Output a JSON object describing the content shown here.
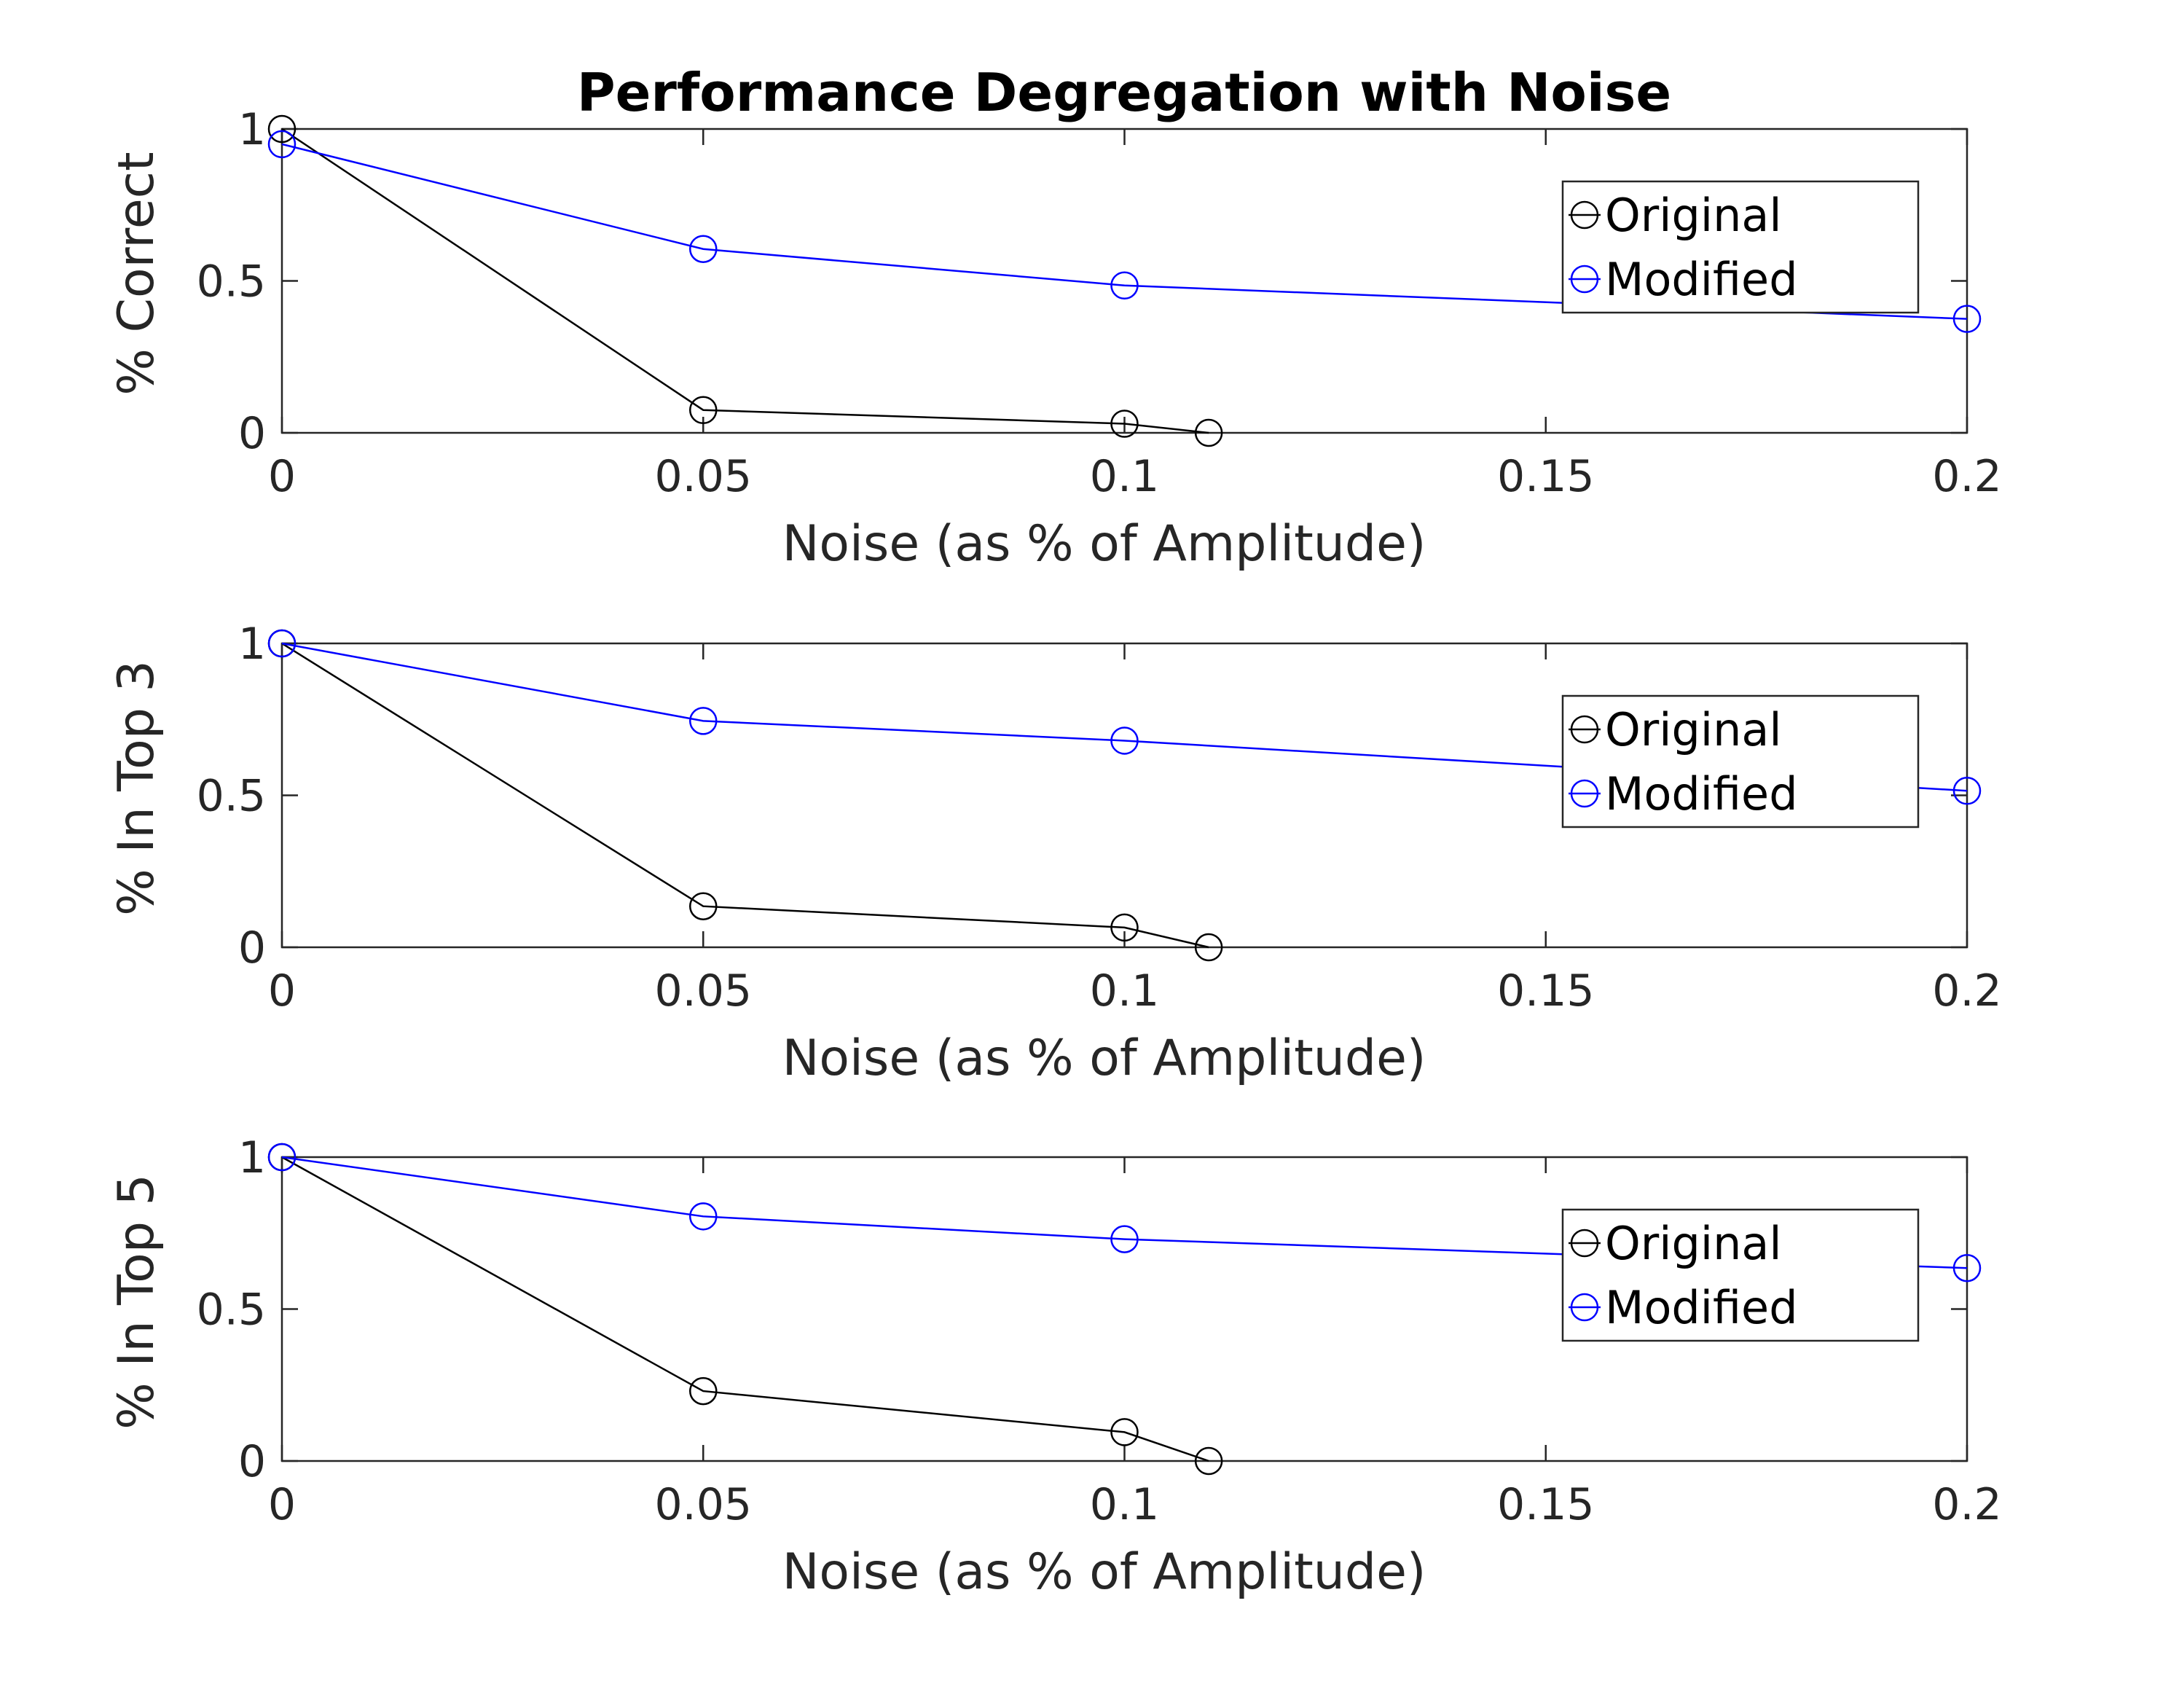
{
  "figure": {
    "title": "Performance Degregation with Noise"
  },
  "chart_data": [
    {
      "type": "line",
      "ylabel": "% Correct",
      "xlabel": "Noise (as % of Amplitude)",
      "xlim": [
        0,
        0.2
      ],
      "ylim": [
        0,
        1
      ],
      "x_ticks": [
        0,
        0.05,
        0.1,
        0.15,
        0.2
      ],
      "x_tick_labels": [
        "0",
        "0.05",
        "0.1",
        "0.15",
        "0.2"
      ],
      "y_ticks": [
        0,
        0.5,
        1
      ],
      "y_tick_labels": [
        "0",
        "0.5",
        "1"
      ],
      "grid": false,
      "legend_position": "top-right",
      "series": [
        {
          "name": "Original",
          "color": "#000000",
          "x": [
            0,
            0.05,
            0.1,
            0.11
          ],
          "y": [
            1.0,
            0.075,
            0.03,
            0.0
          ]
        },
        {
          "name": "Modified",
          "color": "#0000ff",
          "x": [
            0,
            0.05,
            0.1,
            0.2
          ],
          "y": [
            0.95,
            0.605,
            0.485,
            0.375
          ]
        }
      ]
    },
    {
      "type": "line",
      "ylabel": "% In Top 3",
      "xlabel": "Noise (as % of Amplitude)",
      "xlim": [
        0,
        0.2
      ],
      "ylim": [
        0,
        1
      ],
      "x_ticks": [
        0,
        0.05,
        0.1,
        0.15,
        0.2
      ],
      "x_tick_labels": [
        "0",
        "0.05",
        "0.1",
        "0.15",
        "0.2"
      ],
      "y_ticks": [
        0,
        0.5,
        1
      ],
      "y_tick_labels": [
        "0",
        "0.5",
        "1"
      ],
      "grid": false,
      "legend_position": "top-right",
      "series": [
        {
          "name": "Original",
          "color": "#000000",
          "x": [
            0,
            0.05,
            0.1,
            0.11
          ],
          "y": [
            1.0,
            0.135,
            0.065,
            0.0
          ]
        },
        {
          "name": "Modified",
          "color": "#0000ff",
          "x": [
            0,
            0.05,
            0.1,
            0.2
          ],
          "y": [
            1.0,
            0.745,
            0.68,
            0.515
          ]
        }
      ]
    },
    {
      "type": "line",
      "ylabel": "% In Top 5",
      "xlabel": "Noise (as % of Amplitude)",
      "xlim": [
        0,
        0.2
      ],
      "ylim": [
        0,
        1
      ],
      "x_ticks": [
        0,
        0.05,
        0.1,
        0.15,
        0.2
      ],
      "x_tick_labels": [
        "0",
        "0.05",
        "0.1",
        "0.15",
        "0.2"
      ],
      "y_ticks": [
        0,
        0.5,
        1
      ],
      "y_tick_labels": [
        "0",
        "0.5",
        "1"
      ],
      "grid": false,
      "legend_position": "top-right",
      "series": [
        {
          "name": "Original",
          "color": "#000000",
          "x": [
            0,
            0.05,
            0.1,
            0.11
          ],
          "y": [
            1.0,
            0.23,
            0.095,
            0.0
          ]
        },
        {
          "name": "Modified",
          "color": "#0000ff",
          "x": [
            0,
            0.05,
            0.1,
            0.2
          ],
          "y": [
            1.0,
            0.805,
            0.73,
            0.635
          ]
        }
      ]
    }
  ]
}
